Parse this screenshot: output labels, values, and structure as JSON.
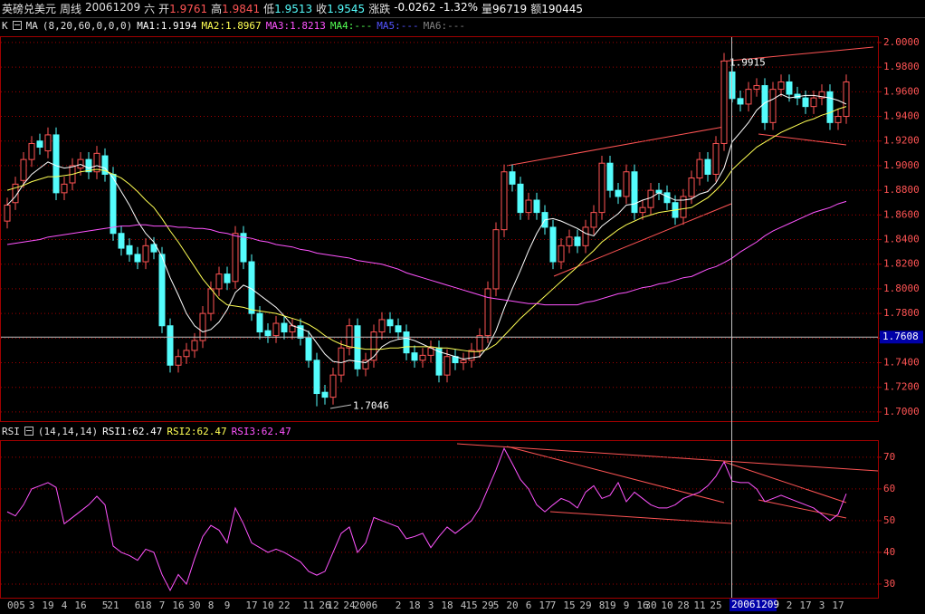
{
  "header": {
    "title": "英磅兑美元",
    "period": "周线",
    "date": "20061209",
    "weekday": "六",
    "fields": [
      {
        "label": "开",
        "value": 1.9761
      },
      {
        "label": "高",
        "value": 1.9841
      },
      {
        "label": "低",
        "value": 1.9513
      },
      {
        "label": "收",
        "value": 1.9545
      }
    ],
    "change_label": "涨跌",
    "change": -0.0262,
    "change_pct": "-1.32%",
    "volume_label": "量",
    "volume": 96719,
    "amount_label": "额",
    "amount": 190445
  },
  "chart_data": [
    {
      "type": "candlestick",
      "label": "K",
      "indicator": "MA",
      "params": "(8,20,60,0,0,0)",
      "up_color": "#ff5454",
      "down_color": "#54fcfc",
      "open": [
        1.855,
        1.87,
        1.888,
        1.905,
        1.92,
        1.912,
        1.925,
        1.878,
        1.886,
        1.898,
        1.905,
        1.895,
        1.908,
        1.893,
        1.845,
        1.835,
        1.828,
        1.822,
        1.836,
        1.828,
        1.77,
        1.738,
        1.745,
        1.75,
        1.758,
        1.78,
        1.8,
        1.812,
        1.806,
        1.845,
        1.822,
        1.78,
        1.766,
        1.762,
        1.772,
        1.765,
        1.77,
        1.76,
        1.742,
        1.716,
        1.712,
        1.73,
        1.752,
        1.77,
        1.735,
        1.742,
        1.765,
        1.775,
        1.77,
        1.765,
        1.748,
        1.742,
        1.746,
        1.752,
        1.73,
        1.745,
        1.74,
        1.742,
        1.75,
        1.762,
        1.8,
        1.848,
        1.895,
        1.885,
        1.862,
        1.872,
        1.862,
        1.85,
        1.822,
        1.835,
        1.842,
        1.835,
        1.85,
        1.862,
        1.902,
        1.88,
        1.875,
        1.895,
        1.862,
        1.866,
        1.88,
        1.878,
        1.87,
        1.858,
        1.875,
        1.89,
        1.905,
        1.893,
        1.918,
        1.9761,
        1.9545,
        1.95,
        1.962,
        1.965,
        1.935,
        1.962,
        1.968,
        1.958,
        1.955,
        1.948,
        1.955,
        1.96,
        1.935,
        1.94
      ],
      "high": [
        1.874,
        1.891,
        1.911,
        1.924,
        1.926,
        1.931,
        1.931,
        1.891,
        1.906,
        1.911,
        1.911,
        1.916,
        1.914,
        1.899,
        1.851,
        1.841,
        1.834,
        1.841,
        1.842,
        1.834,
        1.776,
        1.751,
        1.756,
        1.764,
        1.786,
        1.806,
        1.818,
        1.818,
        1.851,
        1.851,
        1.828,
        1.786,
        1.772,
        1.778,
        1.778,
        1.776,
        1.776,
        1.766,
        1.748,
        1.722,
        1.736,
        1.758,
        1.776,
        1.776,
        1.748,
        1.771,
        1.781,
        1.781,
        1.776,
        1.771,
        1.754,
        1.752,
        1.758,
        1.758,
        1.751,
        1.751,
        1.748,
        1.756,
        1.768,
        1.806,
        1.854,
        1.901,
        1.901,
        1.891,
        1.878,
        1.878,
        1.868,
        1.856,
        1.841,
        1.848,
        1.848,
        1.856,
        1.868,
        1.908,
        1.908,
        1.886,
        1.901,
        1.901,
        1.872,
        1.886,
        1.886,
        1.884,
        1.876,
        1.881,
        1.896,
        1.911,
        1.911,
        1.924,
        1.9915,
        1.9841,
        1.961,
        1.968,
        1.971,
        1.971,
        1.968,
        1.974,
        1.974,
        1.964,
        1.961,
        1.961,
        1.966,
        1.966,
        1.946,
        1.974
      ],
      "low": [
        1.849,
        1.864,
        1.882,
        1.899,
        1.909,
        1.906,
        1.872,
        1.872,
        1.88,
        1.892,
        1.889,
        1.889,
        1.887,
        1.839,
        1.827,
        1.822,
        1.816,
        1.816,
        1.824,
        1.764,
        1.732,
        1.732,
        1.739,
        1.744,
        1.752,
        1.774,
        1.794,
        1.799,
        1.8,
        1.816,
        1.774,
        1.759,
        1.756,
        1.756,
        1.759,
        1.759,
        1.754,
        1.736,
        1.7046,
        1.706,
        1.706,
        1.724,
        1.746,
        1.729,
        1.729,
        1.736,
        1.759,
        1.764,
        1.759,
        1.742,
        1.736,
        1.736,
        1.74,
        1.724,
        1.724,
        1.734,
        1.734,
        1.736,
        1.744,
        1.756,
        1.794,
        1.842,
        1.879,
        1.856,
        1.856,
        1.856,
        1.844,
        1.816,
        1.816,
        1.829,
        1.829,
        1.829,
        1.844,
        1.856,
        1.874,
        1.869,
        1.869,
        1.856,
        1.856,
        1.86,
        1.872,
        1.864,
        1.852,
        1.852,
        1.869,
        1.884,
        1.887,
        1.887,
        1.912,
        1.9513,
        1.944,
        1.944,
        1.956,
        1.929,
        1.929,
        1.956,
        1.952,
        1.949,
        1.942,
        1.942,
        1.949,
        1.929,
        1.929,
        1.934
      ],
      "close": [
        1.868,
        1.885,
        1.905,
        1.918,
        1.915,
        1.925,
        1.878,
        1.885,
        1.9,
        1.905,
        1.895,
        1.91,
        1.893,
        1.845,
        1.833,
        1.828,
        1.822,
        1.835,
        1.83,
        1.77,
        1.738,
        1.745,
        1.75,
        1.758,
        1.78,
        1.8,
        1.812,
        1.805,
        1.845,
        1.822,
        1.78,
        1.765,
        1.762,
        1.772,
        1.765,
        1.77,
        1.76,
        1.742,
        1.715,
        1.712,
        1.73,
        1.752,
        1.77,
        1.735,
        1.742,
        1.765,
        1.775,
        1.77,
        1.765,
        1.748,
        1.742,
        1.746,
        1.752,
        1.73,
        1.745,
        1.74,
        1.742,
        1.75,
        1.762,
        1.8,
        1.848,
        1.895,
        1.885,
        1.862,
        1.872,
        1.862,
        1.85,
        1.822,
        1.835,
        1.842,
        1.835,
        1.85,
        1.862,
        1.902,
        1.88,
        1.875,
        1.895,
        1.862,
        1.866,
        1.88,
        1.878,
        1.87,
        1.858,
        1.875,
        1.89,
        1.905,
        1.893,
        1.918,
        1.985,
        1.9545,
        1.95,
        1.962,
        1.965,
        1.935,
        1.962,
        1.968,
        1.958,
        1.955,
        1.948,
        1.955,
        1.96,
        1.935,
        1.94,
        1.968
      ],
      "series": [
        {
          "name": "MA1:1.9194",
          "color": "#ffffff",
          "values": [
            1.868,
            1.875,
            1.885,
            1.893,
            1.898,
            1.903,
            1.9,
            1.898,
            1.899,
            1.901,
            1.898,
            1.9,
            1.898,
            1.89,
            1.879,
            1.868,
            1.855,
            1.845,
            1.838,
            1.826,
            1.809,
            1.795,
            1.78,
            1.77,
            1.765,
            1.767,
            1.773,
            1.783,
            1.797,
            1.803,
            1.8,
            1.795,
            1.79,
            1.785,
            1.778,
            1.77,
            1.768,
            1.765,
            1.756,
            1.747,
            1.741,
            1.74,
            1.742,
            1.741,
            1.74,
            1.745,
            1.753,
            1.757,
            1.759,
            1.76,
            1.758,
            1.755,
            1.752,
            1.749,
            1.747,
            1.745,
            1.743,
            1.744,
            1.745,
            1.753,
            1.766,
            1.784,
            1.8,
            1.815,
            1.831,
            1.845,
            1.856,
            1.857,
            1.855,
            1.852,
            1.849,
            1.845,
            1.843,
            1.851,
            1.856,
            1.861,
            1.868,
            1.869,
            1.872,
            1.874,
            1.878,
            1.875,
            1.872,
            1.872,
            1.873,
            1.877,
            1.879,
            1.886,
            1.898,
            1.9194,
            1.927,
            1.935,
            1.945,
            1.951,
            1.954,
            1.958,
            1.955,
            1.956,
            1.957,
            1.957,
            1.956,
            1.955,
            1.953,
            1.95
          ]
        },
        {
          "name": "MA2:1.8967",
          "color": "#ffff54",
          "values": [
            1.88,
            1.882,
            1.884,
            1.887,
            1.889,
            1.891,
            1.891,
            1.892,
            1.893,
            1.895,
            1.896,
            1.897,
            1.896,
            1.893,
            1.89,
            1.885,
            1.879,
            1.872,
            1.866,
            1.857,
            1.847,
            1.838,
            1.828,
            1.818,
            1.808,
            1.8,
            1.792,
            1.787,
            1.786,
            1.785,
            1.783,
            1.782,
            1.781,
            1.78,
            1.778,
            1.776,
            1.774,
            1.771,
            1.767,
            1.762,
            1.758,
            1.755,
            1.753,
            1.752,
            1.751,
            1.751,
            1.751,
            1.752,
            1.752,
            1.753,
            1.753,
            1.753,
            1.753,
            1.752,
            1.752,
            1.751,
            1.75,
            1.749,
            1.749,
            1.751,
            1.755,
            1.762,
            1.769,
            1.776,
            1.782,
            1.788,
            1.794,
            1.8,
            1.806,
            1.812,
            1.818,
            1.825,
            1.831,
            1.838,
            1.843,
            1.848,
            1.852,
            1.855,
            1.858,
            1.86,
            1.862,
            1.863,
            1.864,
            1.865,
            1.866,
            1.87,
            1.874,
            1.88,
            1.887,
            1.8967,
            1.903,
            1.909,
            1.915,
            1.919,
            1.923,
            1.927,
            1.93,
            1.933,
            1.936,
            1.938,
            1.941,
            1.943,
            1.946,
            1.948
          ]
        },
        {
          "name": "MA3:1.8213",
          "color": "#ff54ff",
          "values": [
            1.836,
            1.837,
            1.838,
            1.839,
            1.84,
            1.842,
            1.843,
            1.844,
            1.845,
            1.846,
            1.847,
            1.848,
            1.849,
            1.85,
            1.851,
            1.851,
            1.852,
            1.852,
            1.851,
            1.851,
            1.851,
            1.85,
            1.85,
            1.849,
            1.849,
            1.848,
            1.846,
            1.845,
            1.843,
            1.842,
            1.841,
            1.839,
            1.838,
            1.836,
            1.835,
            1.834,
            1.832,
            1.831,
            1.829,
            1.828,
            1.827,
            1.826,
            1.825,
            1.823,
            1.822,
            1.821,
            1.82,
            1.818,
            1.816,
            1.813,
            1.811,
            1.809,
            1.807,
            1.805,
            1.803,
            1.801,
            1.799,
            1.797,
            1.795,
            1.793,
            1.792,
            1.791,
            1.79,
            1.789,
            1.788,
            1.788,
            1.787,
            1.787,
            1.787,
            1.787,
            1.787,
            1.789,
            1.79,
            1.792,
            1.794,
            1.796,
            1.797,
            1.799,
            1.801,
            1.802,
            1.804,
            1.805,
            1.807,
            1.809,
            1.81,
            1.813,
            1.816,
            1.818,
            1.8213,
            1.825,
            1.83,
            1.834,
            1.838,
            1.843,
            1.847,
            1.85,
            1.853,
            1.856,
            1.859,
            1.862,
            1.864,
            1.866,
            1.869,
            1.871
          ]
        }
      ],
      "legend_extra": [
        {
          "text": "MA4:---",
          "color": "#54ff54"
        },
        {
          "text": "MA5:---",
          "color": "#5454ff"
        },
        {
          "text": "MA6:---",
          "color": "#808080"
        }
      ],
      "ylim": [
        1.6926,
        2.0051
      ],
      "yticks": [
        {
          "value": 2.0,
          "label": "2.0000"
        },
        {
          "value": 1.98,
          "label": "1.9800"
        },
        {
          "value": 1.96,
          "label": "1.9600"
        },
        {
          "value": 1.94,
          "label": "1.9400"
        },
        {
          "value": 1.92,
          "label": "1.9200"
        },
        {
          "value": 1.9,
          "label": "1.9000"
        },
        {
          "value": 1.88,
          "label": "1.8800"
        },
        {
          "value": 1.86,
          "label": "1.8600"
        },
        {
          "value": 1.84,
          "label": "1.8400"
        },
        {
          "value": 1.82,
          "label": "1.8200"
        },
        {
          "value": 1.8,
          "label": "1.8000"
        },
        {
          "value": 1.78,
          "label": "1.7800"
        },
        {
          "value": 1.76,
          "label": "1.7600"
        },
        {
          "value": 1.74,
          "label": "1.7400"
        },
        {
          "value": 1.72,
          "label": "1.7200"
        },
        {
          "value": 1.7,
          "label": "1.7000"
        }
      ],
      "grid": true,
      "annotations": [
        1.9915,
        1.7046
      ],
      "crosshair_value": 1.7608
    },
    {
      "type": "line",
      "label": "RSI",
      "params": "(14,14,14)",
      "categories": [
        "005",
        null,
        null,
        "3",
        null,
        "19",
        null,
        "4",
        null,
        "16",
        null,
        null,
        "5",
        "21",
        null,
        null,
        "6",
        "18",
        null,
        "7",
        null,
        "16",
        null,
        "30",
        null,
        "8",
        null,
        "9",
        null,
        null,
        "17",
        null,
        "10",
        null,
        "22",
        null,
        null,
        "11",
        null,
        "26",
        "12",
        null,
        "24",
        null,
        "2006",
        null,
        null,
        null,
        "2",
        null,
        "18",
        null,
        "3",
        null,
        "18",
        null,
        "4",
        "15",
        null,
        "29",
        "5",
        null,
        "20",
        null,
        "6",
        null,
        "17",
        "7",
        null,
        "15",
        null,
        "29",
        null,
        "8",
        "19",
        null,
        "9",
        null,
        "16",
        "30",
        null,
        "10",
        null,
        "28",
        null,
        "11",
        null,
        "25",
        null,
        null,
        null,
        null,
        null,
        null,
        null,
        null,
        "2",
        null,
        "17",
        null,
        "3",
        null,
        "17",
        null
      ],
      "crosshair_label": "20061209",
      "series": [
        {
          "name": "RSI3:62.47",
          "color": "#ff54ff",
          "values": [
            52.8,
            51.5,
            55,
            60,
            61,
            62,
            60.5,
            49,
            51,
            53,
            55,
            57.7,
            55,
            42,
            40,
            39,
            37.5,
            41,
            40,
            33,
            28,
            33,
            30,
            38,
            45,
            48.5,
            47,
            43,
            54,
            49,
            43,
            41.5,
            40,
            41,
            40,
            38.5,
            37,
            34,
            32.8,
            34,
            40,
            46,
            48,
            40,
            43,
            51,
            50,
            49,
            48,
            44.3,
            45,
            46,
            41.5,
            45,
            48,
            46,
            48,
            50,
            54,
            60,
            66,
            72.8,
            68,
            63,
            60,
            55,
            52.8,
            55,
            57,
            56,
            54,
            59,
            61,
            57,
            58,
            62,
            56,
            59,
            57,
            55,
            54,
            54,
            55,
            57,
            58,
            59,
            61,
            64,
            68.5,
            62.47,
            62,
            62,
            60,
            56,
            57,
            58,
            57,
            56,
            55,
            54,
            52,
            50,
            52,
            58.5
          ]
        }
      ],
      "legend_extra": [
        {
          "text": "RSI1:62.47",
          "color": "#ffffff"
        },
        {
          "text": "RSI2:62.47",
          "color": "#ffff54"
        }
      ],
      "ylim": [
        25.7,
        75.4
      ],
      "yticks": [
        30,
        40,
        50,
        60,
        70
      ],
      "grid": true
    }
  ]
}
